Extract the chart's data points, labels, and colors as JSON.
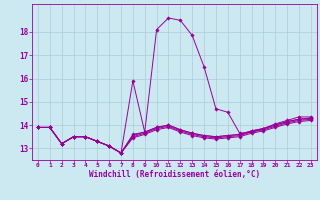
{
  "xlabel": "Windchill (Refroidissement éolien,°C)",
  "xlim": [
    -0.5,
    23.5
  ],
  "ylim": [
    12.5,
    19.2
  ],
  "yticks": [
    13,
    14,
    15,
    16,
    17,
    18
  ],
  "xticks": [
    0,
    1,
    2,
    3,
    4,
    5,
    6,
    7,
    8,
    9,
    10,
    11,
    12,
    13,
    14,
    15,
    16,
    17,
    18,
    19,
    20,
    21,
    22,
    23
  ],
  "bg_color": "#cce8f0",
  "grid_color": "#aaccdd",
  "line_color": "#990099",
  "line0": [
    13.9,
    13.9,
    13.2,
    13.5,
    13.5,
    13.3,
    13.1,
    12.8,
    13.6,
    13.7,
    18.1,
    18.6,
    18.5,
    17.85,
    16.5,
    14.7,
    14.55,
    13.65,
    13.7,
    13.85,
    14.05,
    14.2,
    14.35,
    14.35
  ],
  "line1": [
    13.9,
    13.9,
    13.2,
    13.5,
    13.5,
    13.3,
    13.1,
    12.8,
    13.55,
    13.7,
    13.9,
    14.0,
    13.8,
    13.65,
    13.55,
    13.5,
    13.55,
    13.6,
    13.75,
    13.85,
    14.0,
    14.15,
    14.25,
    14.3
  ],
  "line2": [
    13.9,
    13.9,
    13.2,
    13.5,
    13.5,
    13.3,
    13.1,
    12.8,
    13.5,
    13.65,
    13.85,
    13.95,
    13.75,
    13.6,
    13.5,
    13.45,
    13.5,
    13.55,
    13.7,
    13.8,
    13.95,
    14.1,
    14.2,
    14.25
  ],
  "line3": [
    13.9,
    13.9,
    13.2,
    13.5,
    13.5,
    13.3,
    13.1,
    12.8,
    15.9,
    13.7,
    13.9,
    14.0,
    13.8,
    13.65,
    13.55,
    13.5,
    13.55,
    13.6,
    13.75,
    13.85,
    14.0,
    14.15,
    14.25,
    14.3
  ],
  "line4": [
    13.9,
    13.9,
    13.2,
    13.5,
    13.5,
    13.3,
    13.1,
    12.8,
    13.45,
    13.6,
    13.8,
    13.9,
    13.7,
    13.55,
    13.45,
    13.4,
    13.45,
    13.5,
    13.65,
    13.75,
    13.9,
    14.05,
    14.15,
    14.2
  ]
}
